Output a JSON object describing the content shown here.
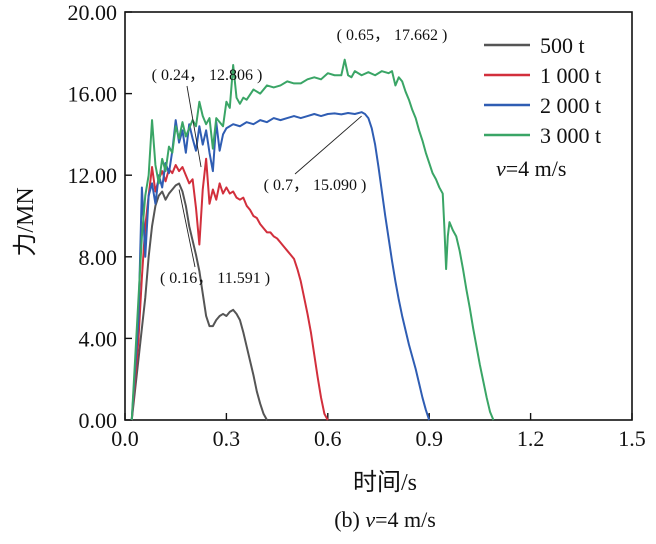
{
  "chart_data": {
    "type": "line",
    "xlabel": "时间/s",
    "ylabel": "力/MN",
    "xlim": [
      0,
      1.5
    ],
    "ylim": [
      0,
      20
    ],
    "xticks": [
      "0.0",
      "0.3",
      "0.6",
      "0.9",
      "1.2",
      "1.5"
    ],
    "yticks": [
      "0.00",
      "4.00",
      "8.00",
      "12.00",
      "16.00",
      "20.00"
    ],
    "grid": false,
    "legend_position": "top-right",
    "legend_note": {
      "italic": "v",
      "rest": "=4 m/s"
    },
    "caption": {
      "prefix": "(b) ",
      "italic": "v",
      "rest": "=4 m/s"
    },
    "annotations": [
      {
        "text": "( 0.65， 17.662 )",
        "x": 0.65,
        "y": 17.662
      },
      {
        "text": "( 0.24， 12.806 )",
        "x": 0.24,
        "y": 12.806
      },
      {
        "text": "( 0.7， 15.090 )",
        "x": 0.7,
        "y": 15.09
      },
      {
        "text": "( 0.16， 11.591 )",
        "x": 0.16,
        "y": 11.591
      }
    ],
    "series": [
      {
        "name": "500 t",
        "color": "#555555",
        "points": [
          [
            0.02,
            0
          ],
          [
            0.04,
            3
          ],
          [
            0.06,
            6
          ],
          [
            0.07,
            8
          ],
          [
            0.08,
            9.5
          ],
          [
            0.09,
            10.5
          ],
          [
            0.1,
            11
          ],
          [
            0.11,
            11.2
          ],
          [
            0.12,
            10.8
          ],
          [
            0.13,
            11.1
          ],
          [
            0.14,
            11.3
          ],
          [
            0.15,
            11.5
          ],
          [
            0.16,
            11.591
          ],
          [
            0.17,
            11.2
          ],
          [
            0.18,
            10.5
          ],
          [
            0.19,
            9.5
          ],
          [
            0.2,
            8.8
          ],
          [
            0.21,
            8.1
          ],
          [
            0.22,
            7.3
          ],
          [
            0.23,
            6.2
          ],
          [
            0.24,
            5.1
          ],
          [
            0.25,
            4.6
          ],
          [
            0.26,
            4.6
          ],
          [
            0.27,
            4.9
          ],
          [
            0.28,
            5.1
          ],
          [
            0.29,
            5.2
          ],
          [
            0.3,
            5.1
          ],
          [
            0.31,
            5.3
          ],
          [
            0.32,
            5.4
          ],
          [
            0.33,
            5.2
          ],
          [
            0.34,
            4.9
          ],
          [
            0.35,
            4.3
          ],
          [
            0.36,
            3.6
          ],
          [
            0.37,
            2.9
          ],
          [
            0.38,
            2.2
          ],
          [
            0.39,
            1.4
          ],
          [
            0.4,
            0.8
          ],
          [
            0.41,
            0.3
          ],
          [
            0.42,
            0
          ]
        ]
      },
      {
        "name": "1 000 t",
        "color": "#d22f3c",
        "points": [
          [
            0.02,
            0
          ],
          [
            0.04,
            4
          ],
          [
            0.05,
            7
          ],
          [
            0.06,
            9.5
          ],
          [
            0.07,
            11
          ],
          [
            0.08,
            12.4
          ],
          [
            0.09,
            11.2
          ],
          [
            0.1,
            11.8
          ],
          [
            0.11,
            12.2
          ],
          [
            0.12,
            11.7
          ],
          [
            0.13,
            12.3
          ],
          [
            0.14,
            12.1
          ],
          [
            0.15,
            12.5
          ],
          [
            0.16,
            12.2
          ],
          [
            0.17,
            12.4
          ],
          [
            0.18,
            12
          ],
          [
            0.19,
            11.6
          ],
          [
            0.2,
            11.8
          ],
          [
            0.21,
            10.4
          ],
          [
            0.22,
            8.6
          ],
          [
            0.23,
            11.3
          ],
          [
            0.24,
            12.806
          ],
          [
            0.25,
            10.6
          ],
          [
            0.26,
            11.3
          ],
          [
            0.27,
            10.8
          ],
          [
            0.28,
            11.6
          ],
          [
            0.29,
            11.1
          ],
          [
            0.3,
            11.4
          ],
          [
            0.31,
            11.1
          ],
          [
            0.32,
            11.2
          ],
          [
            0.33,
            10.9
          ],
          [
            0.34,
            10.8
          ],
          [
            0.35,
            10.9
          ],
          [
            0.36,
            10.5
          ],
          [
            0.37,
            10.3
          ],
          [
            0.38,
            10
          ],
          [
            0.39,
            9.9
          ],
          [
            0.4,
            9.6
          ],
          [
            0.41,
            9.4
          ],
          [
            0.42,
            9.2
          ],
          [
            0.43,
            9.2
          ],
          [
            0.44,
            9
          ],
          [
            0.45,
            8.9
          ],
          [
            0.46,
            8.7
          ],
          [
            0.47,
            8.5
          ],
          [
            0.48,
            8.3
          ],
          [
            0.49,
            8.1
          ],
          [
            0.5,
            7.9
          ],
          [
            0.51,
            7.4
          ],
          [
            0.52,
            6.8
          ],
          [
            0.53,
            6
          ],
          [
            0.54,
            5.2
          ],
          [
            0.55,
            4.3
          ],
          [
            0.56,
            3.2
          ],
          [
            0.57,
            2.1
          ],
          [
            0.58,
            1.1
          ],
          [
            0.59,
            0.3
          ],
          [
            0.6,
            0
          ]
        ]
      },
      {
        "name": "2 000 t",
        "color": "#2f5db3",
        "points": [
          [
            0.02,
            0
          ],
          [
            0.04,
            5
          ],
          [
            0.05,
            11.4
          ],
          [
            0.06,
            8
          ],
          [
            0.07,
            11
          ],
          [
            0.08,
            11.6
          ],
          [
            0.09,
            10.6
          ],
          [
            0.1,
            12
          ],
          [
            0.11,
            11.4
          ],
          [
            0.12,
            12.6
          ],
          [
            0.13,
            12.1
          ],
          [
            0.14,
            13.2
          ],
          [
            0.15,
            14.7
          ],
          [
            0.16,
            13.6
          ],
          [
            0.17,
            14.2
          ],
          [
            0.18,
            13.1
          ],
          [
            0.19,
            14.5
          ],
          [
            0.2,
            13.8
          ],
          [
            0.21,
            13.2
          ],
          [
            0.22,
            14.4
          ],
          [
            0.23,
            13.5
          ],
          [
            0.24,
            14.2
          ],
          [
            0.25,
            13.1
          ],
          [
            0.26,
            12.2
          ],
          [
            0.27,
            14.6
          ],
          [
            0.28,
            13.2
          ],
          [
            0.29,
            14
          ],
          [
            0.3,
            14.3
          ],
          [
            0.32,
            14.5
          ],
          [
            0.34,
            14.4
          ],
          [
            0.36,
            14.6
          ],
          [
            0.38,
            14.5
          ],
          [
            0.4,
            14.7
          ],
          [
            0.42,
            14.6
          ],
          [
            0.44,
            14.8
          ],
          [
            0.46,
            14.7
          ],
          [
            0.48,
            14.8
          ],
          [
            0.5,
            14.9
          ],
          [
            0.52,
            14.8
          ],
          [
            0.54,
            14.9
          ],
          [
            0.56,
            15
          ],
          [
            0.58,
            14.9
          ],
          [
            0.6,
            15
          ],
          [
            0.62,
            15.03
          ],
          [
            0.64,
            14.98
          ],
          [
            0.66,
            15.05
          ],
          [
            0.68,
            15
          ],
          [
            0.7,
            15.09
          ],
          [
            0.71,
            15
          ],
          [
            0.72,
            14.8
          ],
          [
            0.73,
            14.3
          ],
          [
            0.74,
            13.5
          ],
          [
            0.75,
            12.4
          ],
          [
            0.76,
            11.2
          ],
          [
            0.77,
            10
          ],
          [
            0.78,
            8.9
          ],
          [
            0.79,
            7.8
          ],
          [
            0.8,
            6.8
          ],
          [
            0.81,
            5.9
          ],
          [
            0.82,
            5.1
          ],
          [
            0.83,
            4.4
          ],
          [
            0.84,
            3.7
          ],
          [
            0.85,
            3.1
          ],
          [
            0.86,
            2.5
          ],
          [
            0.87,
            1.8
          ],
          [
            0.88,
            1.1
          ],
          [
            0.89,
            0.5
          ],
          [
            0.9,
            0
          ]
        ]
      },
      {
        "name": "3 000 t",
        "color": "#3aa566",
        "points": [
          [
            0.02,
            0
          ],
          [
            0.04,
            6
          ],
          [
            0.05,
            9
          ],
          [
            0.06,
            11
          ],
          [
            0.07,
            12
          ],
          [
            0.08,
            14.7
          ],
          [
            0.09,
            12.5
          ],
          [
            0.1,
            11.6
          ],
          [
            0.11,
            12.8
          ],
          [
            0.12,
            12.2
          ],
          [
            0.13,
            13.4
          ],
          [
            0.14,
            13.1
          ],
          [
            0.15,
            14.4
          ],
          [
            0.16,
            13.8
          ],
          [
            0.17,
            14.6
          ],
          [
            0.18,
            13.9
          ],
          [
            0.19,
            14.3
          ],
          [
            0.2,
            14.7
          ],
          [
            0.21,
            14.4
          ],
          [
            0.22,
            15.6
          ],
          [
            0.23,
            14.9
          ],
          [
            0.24,
            14.5
          ],
          [
            0.25,
            14.8
          ],
          [
            0.26,
            13.3
          ],
          [
            0.27,
            14.8
          ],
          [
            0.28,
            14.6
          ],
          [
            0.29,
            14.4
          ],
          [
            0.3,
            15.6
          ],
          [
            0.31,
            15.3
          ],
          [
            0.32,
            17.4
          ],
          [
            0.33,
            15.8
          ],
          [
            0.34,
            15.5
          ],
          [
            0.35,
            15.8
          ],
          [
            0.36,
            15.7
          ],
          [
            0.38,
            16.2
          ],
          [
            0.4,
            16
          ],
          [
            0.42,
            16.4
          ],
          [
            0.44,
            16.3
          ],
          [
            0.46,
            16.4
          ],
          [
            0.48,
            16.6
          ],
          [
            0.5,
            16.5
          ],
          [
            0.52,
            16.5
          ],
          [
            0.54,
            16.7
          ],
          [
            0.56,
            16.8
          ],
          [
            0.58,
            16.7
          ],
          [
            0.6,
            17
          ],
          [
            0.62,
            16.9
          ],
          [
            0.64,
            16.9
          ],
          [
            0.65,
            17.662
          ],
          [
            0.66,
            16.9
          ],
          [
            0.67,
            16.8
          ],
          [
            0.68,
            17.1
          ],
          [
            0.7,
            16.9
          ],
          [
            0.72,
            17.05
          ],
          [
            0.74,
            16.9
          ],
          [
            0.76,
            17.1
          ],
          [
            0.78,
            17
          ],
          [
            0.79,
            17.1
          ],
          [
            0.8,
            16.4
          ],
          [
            0.81,
            16.8
          ],
          [
            0.82,
            16.6
          ],
          [
            0.83,
            16.1
          ],
          [
            0.84,
            15.7
          ],
          [
            0.85,
            15.2
          ],
          [
            0.86,
            14.8
          ],
          [
            0.87,
            14.2
          ],
          [
            0.88,
            13.7
          ],
          [
            0.89,
            13.1
          ],
          [
            0.9,
            12.6
          ],
          [
            0.91,
            12.1
          ],
          [
            0.92,
            11.8
          ],
          [
            0.93,
            11.4
          ],
          [
            0.94,
            11.1
          ],
          [
            0.945,
            9.4
          ],
          [
            0.95,
            7.4
          ],
          [
            0.955,
            9
          ],
          [
            0.96,
            9.7
          ],
          [
            0.97,
            9.3
          ],
          [
            0.98,
            9
          ],
          [
            0.99,
            8.3
          ],
          [
            1,
            7.4
          ],
          [
            1.01,
            6.4
          ],
          [
            1.02,
            5.5
          ],
          [
            1.03,
            4.5
          ],
          [
            1.04,
            3.6
          ],
          [
            1.05,
            2.7
          ],
          [
            1.06,
            1.9
          ],
          [
            1.07,
            1.1
          ],
          [
            1.08,
            0.4
          ],
          [
            1.09,
            0
          ]
        ]
      }
    ]
  }
}
